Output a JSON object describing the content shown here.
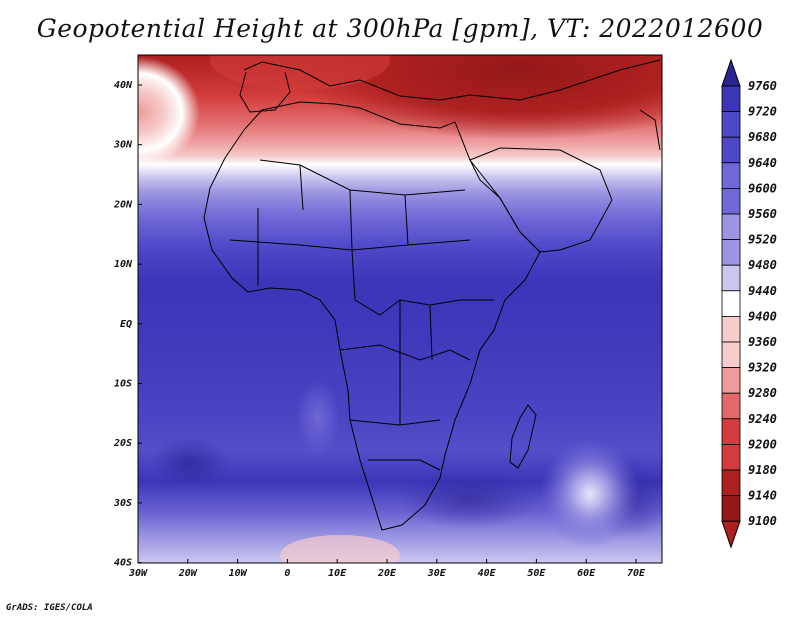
{
  "title": "Geopotential Height at 300hPa [gpm], VT: 2022012600",
  "credit": "GrADS: IGES/COLA",
  "map": {
    "lat_labels": [
      "40N",
      "30N",
      "20N",
      "10N",
      "EQ",
      "10S",
      "20S",
      "30S",
      "40S"
    ],
    "lon_labels": [
      "30W",
      "20W",
      "10W",
      "0",
      "10E",
      "20E",
      "30E",
      "40E",
      "50E",
      "60E",
      "70E"
    ],
    "lon_range": [
      -30,
      75
    ],
    "lat_range": [
      -40,
      45
    ]
  },
  "colorbar": {
    "levels": [
      "9760",
      "9720",
      "9680",
      "9640",
      "9600",
      "9560",
      "9520",
      "9480",
      "9440",
      "9400",
      "9360",
      "9320",
      "9280",
      "9240",
      "9200",
      "9180",
      "9140",
      "9100"
    ],
    "colors": {
      "deep_blue": "#2b2394",
      "blue": "#3c35b8",
      "mid_blue": "#4e47c8",
      "light_blue": "#7068d6",
      "pale_blue": "#9c96e2",
      "very_pale_blue": "#cbc8f0",
      "white": "#ffffff",
      "pale_red": "#f6cccc",
      "light_red": "#ee9c9c",
      "mid_red": "#e06a6a",
      "red": "#d23c3c",
      "dark_red": "#ad2020",
      "deepest_red": "#951818"
    }
  }
}
